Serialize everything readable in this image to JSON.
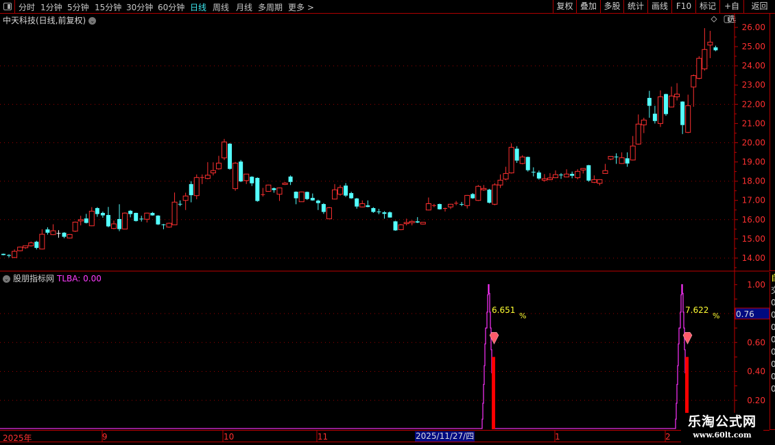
{
  "toolbar": {
    "periods": [
      "分时",
      "1分钟",
      "5分钟",
      "15分钟",
      "30分钟",
      "60分钟",
      "日线",
      "周线",
      "月线",
      "多周期",
      "更多 >"
    ],
    "active_period": "日线",
    "buttons": [
      "复权",
      "叠加",
      "多股",
      "统计",
      "画线",
      "F10",
      "标记",
      "+自选",
      "返回"
    ]
  },
  "chart_title": "中天科技(日线,前复权)",
  "indicator": {
    "name": "股朋指标网",
    "value_label": "TLBA: 0.00"
  },
  "colors": {
    "up": "#ff3030",
    "down": "#54ffff",
    "grid": "#a00000",
    "indicator_line": "#ff33ff",
    "bar": "#ff0000",
    "label": "#ffff33",
    "highlight": "#000a80"
  },
  "chart_data": [
    {
      "type": "candlestick",
      "ylim": [
        14,
        26
      ],
      "yticks": [
        "26.00",
        "25.00",
        "24.00",
        "23.00",
        "22.00",
        "21.00",
        "20.00",
        "19.00",
        "18.00",
        "17.00",
        "16.00",
        "15.00",
        "14.00"
      ],
      "grid": "dotted every 2.00",
      "ohlc_note": "each entry [open, close, high, low]",
      "candles": [
        [
          14.22,
          14.16,
          14.24,
          14.14
        ],
        [
          14.16,
          14.12,
          14.2,
          14.03
        ],
        [
          14.03,
          14.35,
          14.45,
          14.0
        ],
        [
          14.38,
          14.57,
          14.6,
          14.35
        ],
        [
          14.54,
          14.64,
          14.66,
          14.48
        ],
        [
          14.64,
          14.79,
          14.86,
          14.6
        ],
        [
          14.85,
          14.53,
          14.9,
          14.45
        ],
        [
          14.47,
          15.24,
          15.5,
          14.45
        ],
        [
          15.49,
          15.32,
          15.6,
          15.22
        ],
        [
          15.22,
          15.42,
          15.76,
          15.2
        ],
        [
          15.3,
          15.3,
          15.45,
          15.06
        ],
        [
          15.32,
          15.11,
          15.35,
          15.03
        ],
        [
          15.04,
          15.23,
          15.25,
          15.02
        ],
        [
          15.4,
          15.87,
          15.9,
          15.36
        ],
        [
          15.93,
          16.0,
          16.2,
          15.7
        ],
        [
          16.06,
          15.83,
          16.3,
          15.8
        ],
        [
          15.68,
          16.44,
          16.65,
          15.66
        ],
        [
          16.6,
          16.29,
          16.65,
          16.15
        ],
        [
          16.35,
          16.22,
          16.42,
          16.1
        ],
        [
          16.24,
          15.65,
          16.66,
          15.6
        ],
        [
          15.54,
          15.78,
          15.95,
          15.5
        ],
        [
          16.03,
          15.51,
          16.8,
          15.4
        ],
        [
          15.51,
          16.34,
          16.38,
          15.5
        ],
        [
          16.46,
          16.29,
          16.5,
          16.12
        ],
        [
          16.35,
          15.93,
          16.36,
          15.9
        ],
        [
          16.05,
          16.05,
          16.2,
          15.9
        ],
        [
          16.02,
          16.34,
          16.36,
          15.85
        ],
        [
          16.35,
          16.22,
          16.4,
          16.2
        ],
        [
          16.21,
          15.75,
          16.23,
          15.72
        ],
        [
          15.75,
          15.75,
          15.78,
          15.5
        ],
        [
          15.61,
          15.81,
          15.84,
          15.58
        ],
        [
          15.73,
          16.91,
          17.41,
          15.72
        ],
        [
          16.82,
          16.82,
          17.0,
          16.7
        ],
        [
          17.0,
          17.23,
          17.4,
          16.5
        ],
        [
          17.85,
          17.27,
          18.0,
          16.9
        ],
        [
          17.25,
          18.19,
          18.35,
          17.06
        ],
        [
          18.21,
          18.21,
          18.35,
          17.85
        ],
        [
          18.14,
          18.31,
          18.99,
          18.1
        ],
        [
          18.43,
          18.55,
          18.98,
          18.3
        ],
        [
          18.64,
          18.94,
          19.32,
          18.6
        ],
        [
          19.21,
          20.04,
          20.2,
          19.1
        ],
        [
          19.95,
          18.64,
          19.98,
          18.6
        ],
        [
          17.61,
          18.94,
          19.0,
          17.5
        ],
        [
          19.02,
          17.99,
          19.1,
          17.95
        ],
        [
          18.03,
          18.37,
          18.38,
          17.85
        ],
        [
          18.23,
          17.89,
          18.26,
          17.75
        ],
        [
          18.17,
          16.97,
          18.2,
          16.93
        ],
        [
          17.32,
          17.32,
          17.65,
          17.2
        ],
        [
          17.47,
          17.8,
          17.82,
          17.45
        ],
        [
          17.63,
          17.54,
          17.67,
          17.4
        ],
        [
          17.32,
          17.65,
          17.67,
          16.97
        ],
        [
          17.83,
          17.9,
          17.95,
          17.8
        ],
        [
          18.24,
          17.96,
          18.3,
          17.8
        ],
        [
          17.45,
          17.11,
          17.47,
          16.8
        ],
        [
          16.93,
          17.44,
          17.46,
          16.92
        ],
        [
          17.44,
          17.07,
          17.46,
          17.02
        ],
        [
          17.13,
          17.0,
          17.36,
          16.98
        ],
        [
          16.99,
          16.86,
          17.04,
          16.5
        ],
        [
          16.81,
          16.4,
          16.86,
          16.3
        ],
        [
          16.04,
          16.62,
          16.66,
          16.03
        ],
        [
          17.07,
          17.55,
          17.85,
          17.05
        ],
        [
          17.32,
          17.67,
          17.8,
          17.25
        ],
        [
          17.77,
          17.25,
          17.9,
          17.18
        ],
        [
          17.38,
          17.11,
          17.45,
          17.08
        ],
        [
          17.1,
          16.68,
          17.13,
          16.57
        ],
        [
          16.66,
          16.83,
          17.0,
          16.64
        ],
        [
          16.74,
          16.66,
          17.0,
          16.64
        ],
        [
          16.6,
          16.4,
          16.65,
          16.35
        ],
        [
          16.42,
          16.42,
          16.56,
          16.28
        ],
        [
          16.38,
          16.3,
          16.44,
          16.05
        ],
        [
          16.38,
          16.11,
          16.42,
          16.1
        ],
        [
          15.91,
          15.44,
          15.94,
          15.42
        ],
        [
          15.48,
          15.73,
          15.77,
          15.45
        ],
        [
          15.79,
          15.85,
          16.05,
          15.7
        ],
        [
          15.84,
          15.91,
          15.96,
          15.7
        ],
        [
          15.91,
          15.85,
          16.13,
          15.82
        ],
        [
          15.77,
          15.86,
          15.87,
          15.75
        ],
        [
          16.5,
          16.83,
          17.15,
          16.48
        ],
        [
          16.75,
          16.75,
          16.82,
          16.65
        ],
        [
          16.81,
          16.54,
          16.83,
          16.52
        ],
        [
          16.6,
          16.6,
          16.62,
          16.42
        ],
        [
          16.66,
          16.8,
          16.82,
          16.55
        ],
        [
          16.87,
          16.87,
          16.97,
          16.75
        ],
        [
          16.81,
          16.81,
          16.92,
          16.7
        ],
        [
          16.73,
          17.26,
          17.28,
          16.58
        ],
        [
          17.33,
          17.11,
          17.38,
          17.08
        ],
        [
          17.0,
          17.73,
          17.8,
          16.97
        ],
        [
          17.55,
          17.62,
          17.8,
          17.5
        ],
        [
          17.56,
          16.88,
          17.6,
          16.84
        ],
        [
          16.8,
          17.81,
          17.9,
          16.75
        ],
        [
          17.8,
          18.05,
          18.35,
          17.65
        ],
        [
          18.11,
          18.4,
          18.75,
          18.05
        ],
        [
          18.43,
          19.76,
          19.97,
          18.4
        ],
        [
          19.69,
          19.07,
          19.82,
          18.95
        ],
        [
          18.92,
          19.26,
          19.35,
          18.88
        ],
        [
          19.26,
          18.57,
          19.28,
          18.5
        ],
        [
          18.49,
          18.49,
          18.72,
          18.25
        ],
        [
          18.45,
          18.14,
          18.55,
          18.08
        ],
        [
          18.05,
          18.13,
          18.37,
          17.97
        ],
        [
          18.08,
          18.17,
          18.42,
          18.05
        ],
        [
          18.18,
          18.34,
          18.56,
          18.16
        ],
        [
          18.34,
          18.34,
          18.42,
          18.12
        ],
        [
          18.22,
          18.37,
          18.62,
          18.2
        ],
        [
          18.38,
          18.28,
          18.5,
          18.15
        ],
        [
          18.18,
          18.51,
          18.62,
          18.1
        ],
        [
          18.58,
          18.66,
          18.68,
          18.4
        ],
        [
          18.83,
          18.03,
          18.85,
          17.97
        ],
        [
          17.94,
          18.08,
          18.3,
          17.9
        ],
        [
          17.89,
          18.08,
          18.1,
          17.78
        ],
        [
          18.4,
          18.55,
          18.9,
          18.38
        ],
        [
          19.15,
          19.29,
          19.3,
          19.1
        ],
        [
          19.28,
          19.28,
          19.45,
          18.9
        ],
        [
          18.92,
          19.22,
          19.5,
          18.9
        ],
        [
          19.19,
          18.92,
          19.5,
          18.75
        ],
        [
          19.1,
          19.83,
          20.35,
          19.08
        ],
        [
          19.93,
          20.97,
          21.47,
          19.9
        ],
        [
          20.93,
          21.18,
          21.3,
          20.5
        ],
        [
          22.33,
          21.92,
          22.7,
          21.3
        ],
        [
          21.51,
          21.13,
          21.92,
          21.0
        ],
        [
          21.0,
          22.39,
          22.72,
          20.82
        ],
        [
          22.53,
          21.49,
          22.55,
          21.4
        ],
        [
          21.86,
          22.43,
          22.92,
          21.84
        ],
        [
          22.39,
          22.53,
          23.1,
          22.2
        ],
        [
          22.14,
          20.92,
          22.16,
          20.45
        ],
        [
          20.54,
          21.93,
          22.5,
          20.5
        ],
        [
          22.9,
          23.49,
          23.55,
          21.87
        ],
        [
          23.35,
          24.39,
          24.5,
          23.3
        ],
        [
          23.84,
          24.85,
          25.96,
          23.75
        ],
        [
          25.08,
          25.23,
          25.82,
          24.4
        ],
        [
          24.96,
          24.81,
          25.05,
          24.76
        ]
      ]
    },
    {
      "type": "indicator",
      "name": "TLBA",
      "ylim": [
        0,
        1
      ],
      "yticks": [
        "1.00",
        "0.60",
        "0.40",
        "0.20"
      ],
      "cursor_value": "0.76",
      "signals": [
        {
          "candle": 88,
          "peak": 1.0,
          "bar": 0.5,
          "label": "6.651",
          "unit": "%",
          "icon": "diamond-icon"
        },
        {
          "candle": 123,
          "peak": 1.0,
          "bar": 0.5,
          "label": "7.622",
          "unit": "%",
          "icon": "diamond-icon"
        }
      ]
    }
  ],
  "time_axis": {
    "labels": [
      {
        "text": "2025年",
        "candle": 0
      },
      {
        "text": "9",
        "candle": 18
      },
      {
        "text": "10",
        "candle": 40
      },
      {
        "text": "11",
        "candle": 57
      },
      {
        "text": "1",
        "candle": 100
      },
      {
        "text": "2",
        "candle": 120
      }
    ],
    "cursor_date": "2025/11/27/四"
  },
  "side_strip": {
    "lower": [
      "自",
      "交",
      "0",
      "0",
      "0",
      "0",
      "0",
      "0",
      "0",
      "0"
    ]
  },
  "watermark": {
    "title": "乐淘公式网",
    "url": "www.60lt.com"
  }
}
